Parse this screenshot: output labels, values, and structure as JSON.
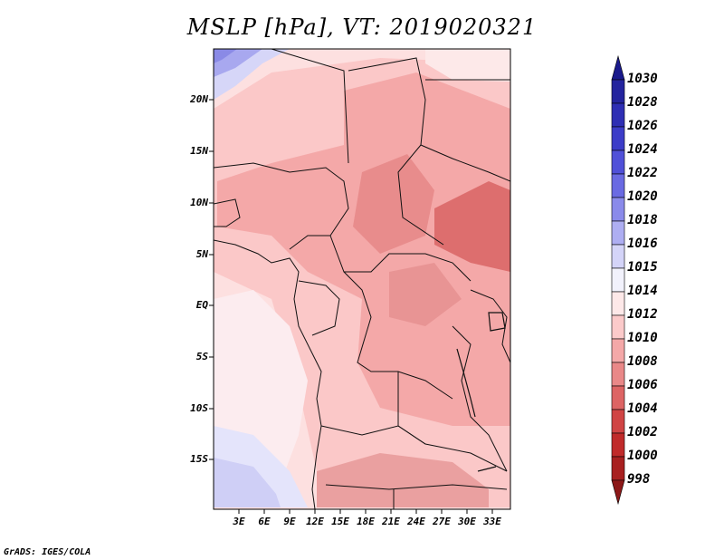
{
  "title": "MSLP [hPa], VT: 2019020321",
  "map": {
    "variable": "MSLP",
    "units": "hPa",
    "valid_time": "2019020321",
    "lat_labels": [
      "20N",
      "15N",
      "10N",
      "5N",
      "EQ",
      "5S",
      "10S",
      "15S"
    ],
    "lon_labels": [
      "3E",
      "6E",
      "9E",
      "12E",
      "15E",
      "18E",
      "21E",
      "24E",
      "27E",
      "30E",
      "33E"
    ]
  },
  "colorbar": {
    "labels": [
      "1030",
      "1028",
      "1026",
      "1024",
      "1022",
      "1020",
      "1018",
      "1016",
      "1015",
      "1014",
      "1012",
      "1010",
      "1008",
      "1006",
      "1004",
      "1002",
      "1000",
      "998"
    ],
    "colors": [
      "#1a1a8c",
      "#24249e",
      "#2e2eb4",
      "#3c3cc8",
      "#5050d8",
      "#6a6ae2",
      "#8a8aea",
      "#aeaef2",
      "#d4d4f8",
      "#f2f2fc",
      "#fde8e8",
      "#fbcaca",
      "#f4a8a8",
      "#e98888",
      "#dd6464",
      "#d04444",
      "#c02a2a",
      "#a82020",
      "#8c1818"
    ]
  },
  "credit": "GrADS: IGES/COLA"
}
